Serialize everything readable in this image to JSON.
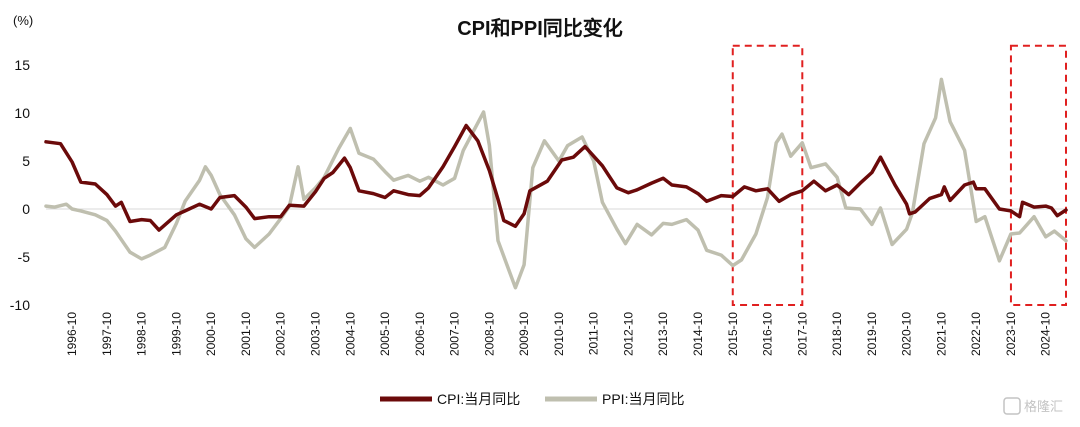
{
  "chart_data": {
    "type": "line",
    "title": "CPI和PPI同比变化",
    "unit_label": "(%)",
    "xlabel": "",
    "ylabel": "",
    "ylim": [
      -10,
      15
    ],
    "y_ticks": [
      15,
      10,
      5,
      0,
      -5,
      -10
    ],
    "x_ticks": [
      "1996-10",
      "1997-10",
      "1998-10",
      "1999-10",
      "2000-10",
      "2001-10",
      "2002-10",
      "2003-10",
      "2004-10",
      "2005-10",
      "2006-10",
      "2007-10",
      "2008-10",
      "2009-10",
      "2010-10",
      "2011-10",
      "2012-10",
      "2013-10",
      "2014-10",
      "2015-10",
      "2016-10",
      "2017-10",
      "2018-10",
      "2019-10",
      "2020-10",
      "2021-10",
      "2022-10",
      "2023-10",
      "2024-10"
    ],
    "x_range": [
      "1996-01",
      "2025-05"
    ],
    "grid": false,
    "legend_position": "bottom",
    "series": [
      {
        "name": "CPI:当月同比",
        "color": "#6b0a0a",
        "points": [
          [
            "1996-01",
            7.0
          ],
          [
            "1996-06",
            6.8
          ],
          [
            "1996-10",
            4.9
          ],
          [
            "1997-01",
            2.8
          ],
          [
            "1997-06",
            2.6
          ],
          [
            "1997-10",
            1.5
          ],
          [
            "1998-01",
            0.3
          ],
          [
            "1998-03",
            0.7
          ],
          [
            "1998-06",
            -1.3
          ],
          [
            "1998-10",
            -1.1
          ],
          [
            "1999-01",
            -1.2
          ],
          [
            "1999-04",
            -2.2
          ],
          [
            "1999-10",
            -0.6
          ],
          [
            "2000-01",
            -0.2
          ],
          [
            "2000-06",
            0.5
          ],
          [
            "2000-10",
            0.0
          ],
          [
            "2001-01",
            1.2
          ],
          [
            "2001-06",
            1.4
          ],
          [
            "2001-10",
            0.2
          ],
          [
            "2002-01",
            -1.0
          ],
          [
            "2002-06",
            -0.8
          ],
          [
            "2002-10",
            -0.8
          ],
          [
            "2003-01",
            0.4
          ],
          [
            "2003-06",
            0.3
          ],
          [
            "2003-10",
            1.8
          ],
          [
            "2004-01",
            3.2
          ],
          [
            "2004-04",
            3.8
          ],
          [
            "2004-08",
            5.3
          ],
          [
            "2004-10",
            4.3
          ],
          [
            "2005-01",
            1.9
          ],
          [
            "2005-06",
            1.6
          ],
          [
            "2005-10",
            1.2
          ],
          [
            "2006-01",
            1.9
          ],
          [
            "2006-06",
            1.5
          ],
          [
            "2006-10",
            1.4
          ],
          [
            "2007-01",
            2.2
          ],
          [
            "2007-06",
            4.4
          ],
          [
            "2007-10",
            6.5
          ],
          [
            "2008-02",
            8.7
          ],
          [
            "2008-06",
            7.1
          ],
          [
            "2008-10",
            4.0
          ],
          [
            "2009-01",
            1.0
          ],
          [
            "2009-03",
            -1.2
          ],
          [
            "2009-07",
            -1.8
          ],
          [
            "2009-10",
            -0.5
          ],
          [
            "2009-12",
            1.9
          ],
          [
            "2010-06",
            2.9
          ],
          [
            "2010-11",
            5.1
          ],
          [
            "2011-03",
            5.4
          ],
          [
            "2011-07",
            6.5
          ],
          [
            "2011-10",
            5.5
          ],
          [
            "2012-01",
            4.5
          ],
          [
            "2012-06",
            2.2
          ],
          [
            "2012-10",
            1.7
          ],
          [
            "2013-01",
            2.0
          ],
          [
            "2013-06",
            2.7
          ],
          [
            "2013-10",
            3.2
          ],
          [
            "2014-01",
            2.5
          ],
          [
            "2014-06",
            2.3
          ],
          [
            "2014-10",
            1.6
          ],
          [
            "2015-01",
            0.8
          ],
          [
            "2015-06",
            1.4
          ],
          [
            "2015-10",
            1.3
          ],
          [
            "2016-02",
            2.3
          ],
          [
            "2016-06",
            1.9
          ],
          [
            "2016-10",
            2.1
          ],
          [
            "2017-02",
            0.8
          ],
          [
            "2017-06",
            1.5
          ],
          [
            "2017-10",
            1.9
          ],
          [
            "2018-02",
            2.9
          ],
          [
            "2018-06",
            1.9
          ],
          [
            "2018-10",
            2.5
          ],
          [
            "2019-02",
            1.5
          ],
          [
            "2019-06",
            2.7
          ],
          [
            "2019-10",
            3.8
          ],
          [
            "2020-01",
            5.4
          ],
          [
            "2020-06",
            2.5
          ],
          [
            "2020-10",
            0.5
          ],
          [
            "2020-11",
            -0.5
          ],
          [
            "2021-01",
            -0.3
          ],
          [
            "2021-06",
            1.1
          ],
          [
            "2021-10",
            1.5
          ],
          [
            "2021-11",
            2.3
          ],
          [
            "2022-01",
            0.9
          ],
          [
            "2022-06",
            2.5
          ],
          [
            "2022-09",
            2.8
          ],
          [
            "2022-10",
            2.1
          ],
          [
            "2023-01",
            2.1
          ],
          [
            "2023-06",
            0.0
          ],
          [
            "2023-10",
            -0.2
          ],
          [
            "2024-01",
            -0.8
          ],
          [
            "2024-02",
            0.7
          ],
          [
            "2024-06",
            0.2
          ],
          [
            "2024-10",
            0.3
          ],
          [
            "2024-12",
            0.1
          ],
          [
            "2025-02",
            -0.7
          ],
          [
            "2025-05",
            -0.1
          ]
        ]
      },
      {
        "name": "PPI:当月同比",
        "color": "#bfbfaf",
        "points": [
          [
            "1996-01",
            0.3
          ],
          [
            "1996-04",
            0.2
          ],
          [
            "1996-08",
            0.5
          ],
          [
            "1996-10",
            0.0
          ],
          [
            "1997-01",
            -0.2
          ],
          [
            "1997-06",
            -0.6
          ],
          [
            "1997-10",
            -1.2
          ],
          [
            "1998-01",
            -2.3
          ],
          [
            "1998-06",
            -4.5
          ],
          [
            "1998-10",
            -5.2
          ],
          [
            "1999-01",
            -4.8
          ],
          [
            "1999-06",
            -4.0
          ],
          [
            "1999-10",
            -1.5
          ],
          [
            "2000-01",
            0.8
          ],
          [
            "2000-06",
            3.0
          ],
          [
            "2000-08",
            4.4
          ],
          [
            "2000-10",
            3.5
          ],
          [
            "2001-01",
            1.5
          ],
          [
            "2001-06",
            -0.6
          ],
          [
            "2001-10",
            -3.1
          ],
          [
            "2002-01",
            -4.0
          ],
          [
            "2002-06",
            -2.6
          ],
          [
            "2002-10",
            -1.0
          ],
          [
            "2003-01",
            0.3
          ],
          [
            "2003-04",
            4.4
          ],
          [
            "2003-06",
            1.0
          ],
          [
            "2003-10",
            2.2
          ],
          [
            "2004-01",
            3.3
          ],
          [
            "2004-06",
            6.3
          ],
          [
            "2004-10",
            8.4
          ],
          [
            "2005-01",
            5.8
          ],
          [
            "2005-06",
            5.2
          ],
          [
            "2005-10",
            3.9
          ],
          [
            "2006-01",
            3.0
          ],
          [
            "2006-06",
            3.5
          ],
          [
            "2006-10",
            2.9
          ],
          [
            "2007-01",
            3.3
          ],
          [
            "2007-06",
            2.5
          ],
          [
            "2007-10",
            3.2
          ],
          [
            "2008-01",
            6.1
          ],
          [
            "2008-08",
            10.1
          ],
          [
            "2008-10",
            6.6
          ],
          [
            "2009-01",
            -3.3
          ],
          [
            "2009-07",
            -8.2
          ],
          [
            "2009-10",
            -5.8
          ],
          [
            "2010-01",
            4.3
          ],
          [
            "2010-05",
            7.1
          ],
          [
            "2010-10",
            5.0
          ],
          [
            "2011-01",
            6.6
          ],
          [
            "2011-06",
            7.5
          ],
          [
            "2011-10",
            5.0
          ],
          [
            "2012-01",
            0.7
          ],
          [
            "2012-06",
            -2.1
          ],
          [
            "2012-09",
            -3.6
          ],
          [
            "2013-01",
            -1.6
          ],
          [
            "2013-06",
            -2.7
          ],
          [
            "2013-10",
            -1.5
          ],
          [
            "2014-01",
            -1.6
          ],
          [
            "2014-06",
            -1.1
          ],
          [
            "2014-10",
            -2.2
          ],
          [
            "2015-01",
            -4.3
          ],
          [
            "2015-06",
            -4.8
          ],
          [
            "2015-10",
            -5.9
          ],
          [
            "2016-01",
            -5.3
          ],
          [
            "2016-06",
            -2.6
          ],
          [
            "2016-10",
            1.2
          ],
          [
            "2017-01",
            6.9
          ],
          [
            "2017-03",
            7.8
          ],
          [
            "2017-06",
            5.5
          ],
          [
            "2017-10",
            6.9
          ],
          [
            "2018-01",
            4.3
          ],
          [
            "2018-06",
            4.7
          ],
          [
            "2018-10",
            3.3
          ],
          [
            "2019-01",
            0.1
          ],
          [
            "2019-06",
            0.0
          ],
          [
            "2019-10",
            -1.6
          ],
          [
            "2020-01",
            0.1
          ],
          [
            "2020-05",
            -3.7
          ],
          [
            "2020-10",
            -2.1
          ],
          [
            "2020-12",
            -0.4
          ],
          [
            "2021-04",
            6.8
          ],
          [
            "2021-08",
            9.5
          ],
          [
            "2021-10",
            13.5
          ],
          [
            "2022-01",
            9.1
          ],
          [
            "2022-06",
            6.1
          ],
          [
            "2022-10",
            -1.3
          ],
          [
            "2023-01",
            -0.8
          ],
          [
            "2023-06",
            -5.4
          ],
          [
            "2023-10",
            -2.6
          ],
          [
            "2024-01",
            -2.5
          ],
          [
            "2024-06",
            -0.8
          ],
          [
            "2024-10",
            -2.9
          ],
          [
            "2025-01",
            -2.3
          ],
          [
            "2025-05",
            -3.3
          ]
        ]
      }
    ],
    "highlight_boxes": [
      {
        "from": "2015-10",
        "to": "2017-10",
        "y_top": 17,
        "y_bottom": -10,
        "color": "#e02020",
        "style": "dashed"
      },
      {
        "from": "2023-10",
        "to": "2025-05",
        "y_top": 17,
        "y_bottom": -10,
        "color": "#e02020",
        "style": "dashed"
      }
    ]
  },
  "watermark": {
    "text": "格隆汇",
    "icon": "gelonghui-logo-icon"
  }
}
